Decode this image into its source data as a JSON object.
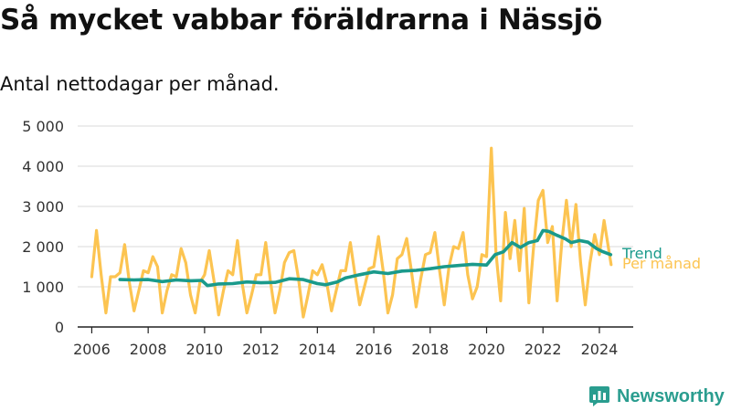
{
  "page": {
    "title": "Så mycket vabbar föräldrarna i Nässjö",
    "subtitle": "Antal nettodagar per månad.",
    "brand": "Newsworthy"
  },
  "colors": {
    "monthly": "#fcc451",
    "trend": "#1a9a8b",
    "grid": "#d9d9d9",
    "axis": "#222222",
    "brand": "#2a9d8f"
  },
  "chart_data": {
    "type": "line",
    "title": "Så mycket vabbar föräldrarna i Nässjö",
    "subtitle": "Antal nettodagar per månad.",
    "xlabel": "",
    "ylabel": "",
    "xlim": [
      2005.5,
      2025.2
    ],
    "ylim": [
      0,
      5000
    ],
    "x_ticks": [
      2006,
      2008,
      2010,
      2012,
      2014,
      2016,
      2018,
      2020,
      2022,
      2024
    ],
    "x_tick_labels": [
      "2006",
      "2008",
      "2010",
      "2012",
      "2014",
      "2016",
      "2018",
      "2020",
      "2022",
      "2024"
    ],
    "y_ticks": [
      0,
      1000,
      2000,
      3000,
      4000,
      5000
    ],
    "y_tick_labels": [
      "0",
      "1 000",
      "2 000",
      "3 000",
      "4 000",
      "5 000"
    ],
    "grid": true,
    "legend": "end-of-line labels",
    "series": [
      {
        "name": "Per månad",
        "color": "#fcc451",
        "x": [
          2006.0,
          2006.167,
          2006.333,
          2006.5,
          2006.667,
          2006.833,
          2007.0,
          2007.167,
          2007.333,
          2007.5,
          2007.667,
          2007.833,
          2008.0,
          2008.167,
          2008.333,
          2008.5,
          2008.667,
          2008.833,
          2009.0,
          2009.167,
          2009.333,
          2009.5,
          2009.667,
          2009.833,
          2010.0,
          2010.167,
          2010.333,
          2010.5,
          2010.667,
          2010.833,
          2011.0,
          2011.167,
          2011.333,
          2011.5,
          2011.667,
          2011.833,
          2012.0,
          2012.167,
          2012.333,
          2012.5,
          2012.667,
          2012.833,
          2013.0,
          2013.167,
          2013.333,
          2013.5,
          2013.667,
          2013.833,
          2014.0,
          2014.167,
          2014.333,
          2014.5,
          2014.667,
          2014.833,
          2015.0,
          2015.167,
          2015.333,
          2015.5,
          2015.667,
          2015.833,
          2016.0,
          2016.167,
          2016.333,
          2016.5,
          2016.667,
          2016.833,
          2017.0,
          2017.167,
          2017.333,
          2017.5,
          2017.667,
          2017.833,
          2018.0,
          2018.167,
          2018.333,
          2018.5,
          2018.667,
          2018.833,
          2019.0,
          2019.167,
          2019.333,
          2019.5,
          2019.667,
          2019.833,
          2020.0,
          2020.167,
          2020.333,
          2020.5,
          2020.667,
          2020.833,
          2021.0,
          2021.167,
          2021.333,
          2021.5,
          2021.667,
          2021.833,
          2022.0,
          2022.167,
          2022.333,
          2022.5,
          2022.667,
          2022.833,
          2023.0,
          2023.167,
          2023.333,
          2023.5,
          2023.667,
          2023.833,
          2024.0,
          2024.167,
          2024.417
        ],
        "values": [
          1250,
          2400,
          1300,
          350,
          1250,
          1250,
          1350,
          2050,
          1100,
          400,
          900,
          1400,
          1350,
          1750,
          1500,
          350,
          900,
          1300,
          1250,
          1950,
          1600,
          800,
          350,
          1100,
          1300,
          1900,
          1150,
          300,
          900,
          1400,
          1300,
          2150,
          1100,
          350,
          800,
          1300,
          1300,
          2100,
          1150,
          350,
          900,
          1600,
          1850,
          1900,
          1200,
          250,
          800,
          1400,
          1300,
          1550,
          1100,
          400,
          900,
          1400,
          1400,
          2100,
          1300,
          550,
          1000,
          1450,
          1500,
          2250,
          1400,
          350,
          800,
          1700,
          1800,
          2200,
          1400,
          500,
          1200,
          1800,
          1850,
          2350,
          1400,
          550,
          1500,
          2000,
          1950,
          2350,
          1300,
          700,
          1000,
          1800,
          1750,
          4450,
          1850,
          650,
          2850,
          1700,
          2650,
          1400,
          2950,
          600,
          2000,
          3150,
          3400,
          2100,
          2500,
          650,
          2100,
          3150,
          2000,
          3050,
          1600,
          550,
          1600,
          2300,
          1800,
          2650,
          1550
        ]
      },
      {
        "name": "Trend",
        "color": "#1a9a8b",
        "x": [
          2007.0,
          2007.5,
          2008.0,
          2008.5,
          2009.0,
          2009.5,
          2009.9,
          2010.1,
          2010.5,
          2011.0,
          2011.5,
          2012.0,
          2012.5,
          2013.0,
          2013.5,
          2014.0,
          2014.3,
          2014.7,
          2015.0,
          2015.5,
          2016.0,
          2016.5,
          2017.0,
          2017.5,
          2018.0,
          2018.5,
          2019.0,
          2019.5,
          2020.0,
          2020.3,
          2020.6,
          2020.9,
          2021.2,
          2021.5,
          2021.8,
          2022.0,
          2022.2,
          2022.5,
          2022.8,
          2023.0,
          2023.3,
          2023.6,
          2023.9,
          2024.1,
          2024.4
        ],
        "values": [
          1180,
          1170,
          1180,
          1130,
          1170,
          1150,
          1160,
          1030,
          1070,
          1080,
          1120,
          1100,
          1110,
          1200,
          1180,
          1080,
          1050,
          1120,
          1220,
          1300,
          1370,
          1330,
          1390,
          1410,
          1450,
          1500,
          1530,
          1560,
          1540,
          1800,
          1870,
          2100,
          1980,
          2100,
          2150,
          2400,
          2380,
          2280,
          2190,
          2100,
          2150,
          2110,
          1950,
          1880,
          1800
        ],
        "label": "Trend"
      }
    ]
  }
}
